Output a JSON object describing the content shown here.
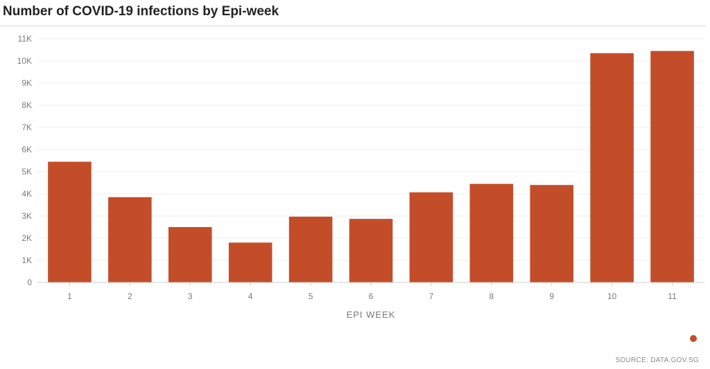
{
  "colors": {
    "bar": "#c44d29",
    "grid": "#ececec",
    "axis": "#cccccc"
  },
  "source": "SOURCE: DATA.GOV.SG",
  "chart_data": {
    "type": "bar",
    "title": "Number of COVID-19 infections by Epi-week",
    "xlabel": "EPI WEEK",
    "ylabel": "",
    "categories": [
      "1",
      "2",
      "3",
      "4",
      "5",
      "6",
      "7",
      "8",
      "9",
      "10",
      "11"
    ],
    "values": [
      5450,
      3850,
      2500,
      1800,
      2970,
      2870,
      4070,
      4450,
      4400,
      10350,
      10450
    ],
    "ylim": [
      0,
      11000
    ],
    "yticks": [
      0,
      1000,
      2000,
      3000,
      4000,
      5000,
      6000,
      7000,
      8000,
      9000,
      10000,
      11000
    ],
    "ytick_labels": [
      "0",
      "1K",
      "2K",
      "3K",
      "4K",
      "5K",
      "6K",
      "7K",
      "8K",
      "9K",
      "10K",
      "11K"
    ],
    "grid": true,
    "legend": "bottom-right"
  }
}
